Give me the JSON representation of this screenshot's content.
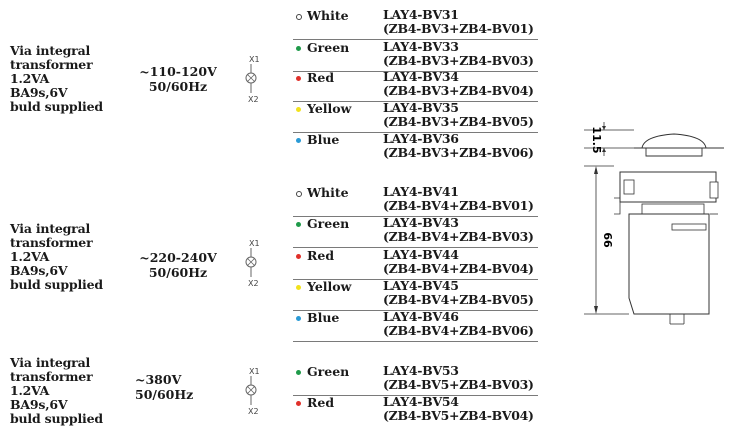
{
  "groups": [
    {
      "desc": [
        "Via integral",
        "transformer",
        "1.2VA",
        "BA9s,6V",
        "buld supplied"
      ],
      "voltage": "~110-120V",
      "freq": "50/60Hz",
      "sym": {
        "top": "X1",
        "bottom": "X2"
      },
      "rows": [
        {
          "color_name": "White",
          "dot": "#ffffff",
          "model": "LAY4-BV31",
          "combo": "(ZB4-BV3+ZB4-BV01)"
        },
        {
          "color_name": "Green",
          "dot": "#1f9a4a",
          "model": "LAY4-BV33",
          "combo": "(ZB4-BV3+ZB4-BV03)"
        },
        {
          "color_name": "Red",
          "dot": "#e0302a",
          "model": "LAY4-BV34",
          "combo": "(ZB4-BV3+ZB4-BV04)"
        },
        {
          "color_name": "Yellow",
          "dot": "#f2e21c",
          "model": "LAY4-BV35",
          "combo": "(ZB4-BV3+ZB4-BV05)"
        },
        {
          "color_name": "Blue",
          "dot": "#2a9ad6",
          "model": "LAY4-BV36",
          "combo": "(ZB4-BV3+ZB4-BV06)"
        }
      ]
    },
    {
      "desc": [
        "Via integral",
        "transformer",
        "1.2VA",
        "BA9s,6V",
        "buld supplied"
      ],
      "voltage": "~220-240V",
      "freq": "50/60Hz",
      "sym": {
        "top": "X1",
        "bottom": "X2"
      },
      "rows": [
        {
          "color_name": "White",
          "dot": "#ffffff",
          "model": "LAY4-BV41",
          "combo": "(ZB4-BV4+ZB4-BV01)"
        },
        {
          "color_name": "Green",
          "dot": "#1f9a4a",
          "model": "LAY4-BV43",
          "combo": "(ZB4-BV4+ZB4-BV03)"
        },
        {
          "color_name": "Red",
          "dot": "#e0302a",
          "model": "LAY4-BV44",
          "combo": "(ZB4-BV4+ZB4-BV04)"
        },
        {
          "color_name": "Yellow",
          "dot": "#f2e21c",
          "model": "LAY4-BV45",
          "combo": "(ZB4-BV4+ZB4-BV05)"
        },
        {
          "color_name": "Blue",
          "dot": "#2a9ad6",
          "model": "LAY4-BV46",
          "combo": "(ZB4-BV4+ZB4-BV06)"
        }
      ]
    },
    {
      "desc": [
        "Via integral",
        "transformer",
        "1.2VA",
        "BA9s,6V",
        "buld supplied"
      ],
      "voltage": "~380V",
      "freq": "50/60Hz",
      "sym": {
        "top": "X1",
        "bottom": "X2"
      },
      "rows": [
        {
          "color_name": "Green",
          "dot": "#1f9a4a",
          "model": "LAY4-BV53",
          "combo": "(ZB4-BV5+ZB4-BV03)"
        },
        {
          "color_name": "Red",
          "dot": "#e0302a",
          "model": "LAY4-BV54",
          "combo": "(ZB4-BV5+ZB4-BV04)"
        }
      ]
    }
  ],
  "drawing": {
    "dim_top": "11.5",
    "dim_height": "66"
  }
}
